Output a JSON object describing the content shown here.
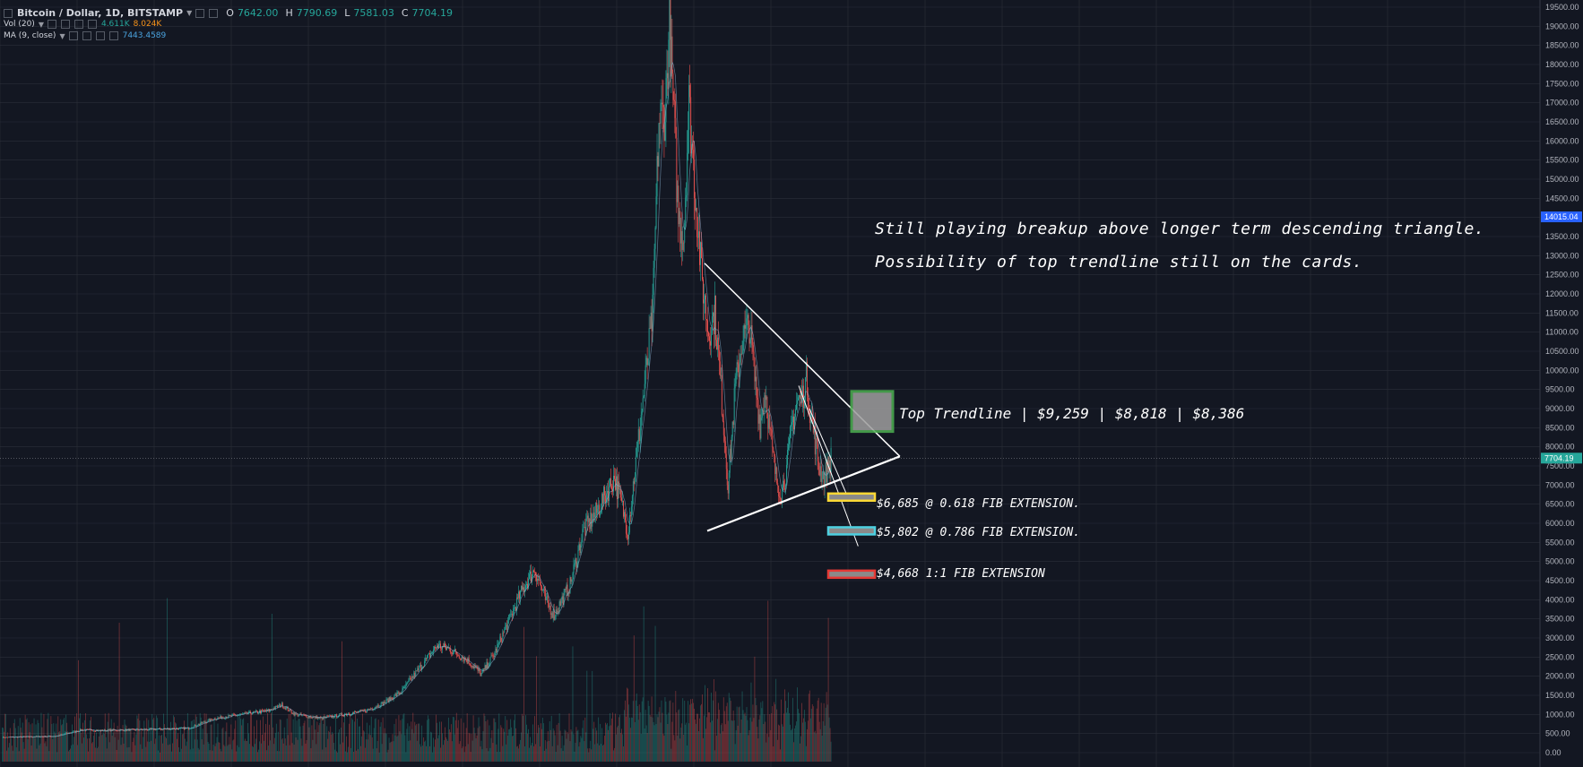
{
  "header": {
    "symbol_label": "Bitcoin / Dollar, 1D, BITSTAMP",
    "ohlc": [
      {
        "key": "O",
        "value": "7642.00"
      },
      {
        "key": "H",
        "value": "7790.69"
      },
      {
        "key": "L",
        "value": "7581.03"
      },
      {
        "key": "C",
        "value": "7704.19"
      }
    ],
    "volume_label": "Vol (20)",
    "volume_value_a": "4.611K",
    "volume_value_b": "8.024K",
    "ma_label": "MA (9, close)",
    "ma_value": "7443.4589"
  },
  "annotations": {
    "headline_1": "Still playing breakup above longer term descending triangle.",
    "headline_2": "Possibility of top trendline still on the cards.",
    "top_trendline": "Top Trendline | $9,259 | $8,818 | $8,386",
    "fib_618": "$6,685 @ 0.618 FIB EXTENSION.",
    "fib_786": "$5,802 @ 0.786 FIB EXTENSION.",
    "fib_1": "$4,668 1:1 FIB EXTENSION"
  },
  "colors": {
    "background": "#131722",
    "grid": "#2a2e39",
    "up": "#26a69a",
    "down": "#ef5350",
    "trendline": "#ffffff",
    "box_top": "#4caf50",
    "box_618": "#fdd835",
    "box_786": "#4dd0e1",
    "box_1": "#e53935",
    "price_tag": "#26a69a",
    "crosshair_tag": "#2962ff"
  },
  "chart_data": {
    "type": "candlestick",
    "title": "Bitcoin / Dollar, 1D, BITSTAMP",
    "ylim": [
      0,
      19500
    ],
    "y_ticks": [
      "0.00",
      "500.00",
      "1000.00",
      "1500.00",
      "2000.00",
      "2500.00",
      "3000.00",
      "3500.00",
      "4000.00",
      "4500.00",
      "5000.00",
      "5500.00",
      "6000.00",
      "6500.00",
      "7000.00",
      "7500.00",
      "8000.00",
      "8500.00",
      "9000.00",
      "9500.00",
      "10000.00",
      "10500.00",
      "11000.00",
      "11500.00",
      "12000.00",
      "12500.00",
      "13000.00",
      "13500.00",
      "14000.00",
      "14500.00",
      "15000.00",
      "15500.00",
      "16000.00",
      "16500.00",
      "17000.00",
      "17500.00",
      "18000.00",
      "18500.00",
      "19000.00",
      "19500.00"
    ],
    "last_price_label": "7704.19",
    "crosshair_price_label": "14015.04",
    "price_path": [
      {
        "i": 0,
        "price": 400
      },
      {
        "i": 60,
        "price": 430
      },
      {
        "i": 90,
        "price": 600
      },
      {
        "i": 110,
        "price": 580
      },
      {
        "i": 170,
        "price": 610
      },
      {
        "i": 210,
        "price": 640
      },
      {
        "i": 240,
        "price": 900
      },
      {
        "i": 270,
        "price": 1000
      },
      {
        "i": 300,
        "price": 1100
      },
      {
        "i": 315,
        "price": 1250
      },
      {
        "i": 330,
        "price": 1000
      },
      {
        "i": 360,
        "price": 900
      },
      {
        "i": 385,
        "price": 1000
      },
      {
        "i": 410,
        "price": 1100
      },
      {
        "i": 430,
        "price": 1300
      },
      {
        "i": 450,
        "price": 1600
      },
      {
        "i": 470,
        "price": 2200
      },
      {
        "i": 490,
        "price": 2800
      },
      {
        "i": 505,
        "price": 2700
      },
      {
        "i": 525,
        "price": 2400
      },
      {
        "i": 540,
        "price": 2050
      },
      {
        "i": 555,
        "price": 2600
      },
      {
        "i": 570,
        "price": 3400
      },
      {
        "i": 585,
        "price": 4200
      },
      {
        "i": 600,
        "price": 4800
      },
      {
        "i": 612,
        "price": 4000
      },
      {
        "i": 622,
        "price": 3600
      },
      {
        "i": 640,
        "price": 4400
      },
      {
        "i": 655,
        "price": 5800
      },
      {
        "i": 670,
        "price": 6300
      },
      {
        "i": 690,
        "price": 7200
      },
      {
        "i": 700,
        "price": 6300
      },
      {
        "i": 705,
        "price": 5800
      },
      {
        "i": 715,
        "price": 7800
      },
      {
        "i": 725,
        "price": 9800
      },
      {
        "i": 733,
        "price": 11500
      },
      {
        "i": 740,
        "price": 16500
      },
      {
        "i": 747,
        "price": 16800
      },
      {
        "i": 752,
        "price": 19000
      },
      {
        "i": 758,
        "price": 16000
      },
      {
        "i": 762,
        "price": 14000
      },
      {
        "i": 768,
        "price": 13500
      },
      {
        "i": 774,
        "price": 17000
      },
      {
        "i": 780,
        "price": 15000
      },
      {
        "i": 788,
        "price": 12500
      },
      {
        "i": 796,
        "price": 11000
      },
      {
        "i": 803,
        "price": 11500
      },
      {
        "i": 810,
        "price": 9500
      },
      {
        "i": 818,
        "price": 7000
      },
      {
        "i": 826,
        "price": 9500
      },
      {
        "i": 834,
        "price": 10800
      },
      {
        "i": 842,
        "price": 11200
      },
      {
        "i": 848,
        "price": 9800
      },
      {
        "i": 854,
        "price": 8600
      },
      {
        "i": 860,
        "price": 9500
      },
      {
        "i": 866,
        "price": 8200
      },
      {
        "i": 872,
        "price": 7200
      },
      {
        "i": 878,
        "price": 6800
      },
      {
        "i": 884,
        "price": 7400
      },
      {
        "i": 890,
        "price": 8600
      },
      {
        "i": 896,
        "price": 9200
      },
      {
        "i": 902,
        "price": 9300
      },
      {
        "i": 906,
        "price": 9800
      },
      {
        "i": 910,
        "price": 9000
      },
      {
        "i": 915,
        "price": 8300
      },
      {
        "i": 920,
        "price": 7500
      },
      {
        "i": 926,
        "price": 7200
      },
      {
        "i": 934,
        "price": 7700
      }
    ],
    "volume_note": "volume bars at bottom, MA(20) volume line",
    "annotations": [
      {
        "type": "trendline",
        "from": {
          "i": 792,
          "price": 12800
        },
        "to": {
          "i": 1012,
          "price": 7750
        }
      },
      {
        "type": "trendline",
        "from": {
          "i": 795,
          "price": 5800
        },
        "to": {
          "i": 1012,
          "price": 7750
        }
      },
      {
        "type": "box",
        "label_ref": "top_trendline",
        "top": 9450,
        "bottom": 8400
      },
      {
        "type": "box",
        "label_ref": "fib_618",
        "price": 6685
      },
      {
        "type": "box",
        "label_ref": "fib_786",
        "price": 5802
      },
      {
        "type": "box",
        "label_ref": "fib_1",
        "price": 4668
      }
    ]
  }
}
